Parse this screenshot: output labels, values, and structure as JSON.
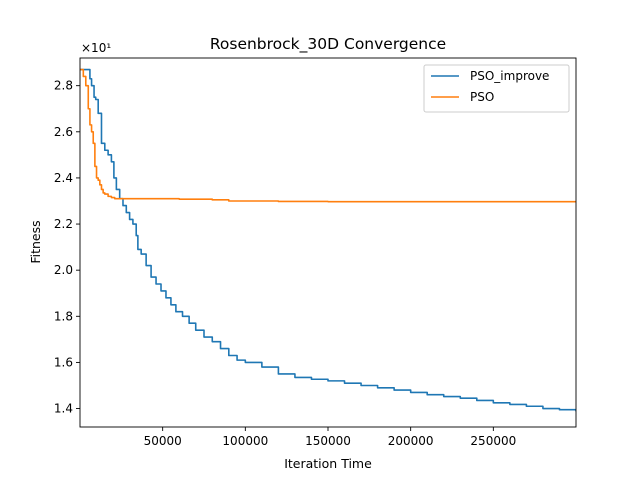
{
  "chart_data": {
    "type": "line",
    "title": "Rosenbrock_30D Convergence",
    "xlabel": "Iteration Time",
    "ylabel": "Fitness",
    "y_offset_text": "×10¹",
    "xlim": [
      1,
      300000
    ],
    "ylim": [
      1.32,
      2.92
    ],
    "xticks": [
      50000,
      100000,
      150000,
      200000,
      250000
    ],
    "xtick_labels": [
      "50000",
      "100000",
      "150000",
      "200000",
      "250000"
    ],
    "yticks": [
      1.4,
      1.6,
      1.8,
      2.0,
      2.2,
      2.4,
      2.6,
      2.8
    ],
    "ytick_labels": [
      "1.4",
      "1.6",
      "1.8",
      "2.0",
      "2.2",
      "2.4",
      "2.6",
      "2.8"
    ],
    "grid": false,
    "legend_position": "top-right",
    "series": [
      {
        "name": "PSO_improve",
        "color": "#1f77b4",
        "x": [
          1,
          4000,
          6000,
          7000,
          8500,
          9500,
          11000,
          13000,
          15000,
          17000,
          19000,
          20500,
          22000,
          24000,
          26000,
          28000,
          30000,
          32000,
          34000,
          35000,
          37000,
          40000,
          43000,
          46000,
          49000,
          52000,
          55000,
          58000,
          62000,
          66000,
          70000,
          75000,
          80000,
          85000,
          90000,
          95000,
          100000,
          110000,
          120000,
          130000,
          140000,
          150000,
          160000,
          170000,
          180000,
          190000,
          200000,
          210000,
          220000,
          230000,
          240000,
          250000,
          260000,
          270000,
          280000,
          290000,
          300000
        ],
        "values": [
          2.87,
          2.87,
          2.83,
          2.8,
          2.75,
          2.74,
          2.68,
          2.55,
          2.52,
          2.5,
          2.47,
          2.4,
          2.35,
          2.31,
          2.28,
          2.25,
          2.22,
          2.2,
          2.15,
          2.09,
          2.07,
          2.02,
          1.97,
          1.94,
          1.91,
          1.88,
          1.85,
          1.82,
          1.8,
          1.77,
          1.74,
          1.71,
          1.69,
          1.66,
          1.63,
          1.61,
          1.6,
          1.58,
          1.55,
          1.535,
          1.527,
          1.52,
          1.51,
          1.5,
          1.49,
          1.48,
          1.47,
          1.46,
          1.452,
          1.445,
          1.435,
          1.425,
          1.418,
          1.41,
          1.4,
          1.395,
          1.388
        ]
      },
      {
        "name": "PSO",
        "color": "#ff7f0e",
        "x": [
          1,
          2000,
          3500,
          5000,
          6000,
          7000,
          8000,
          9000,
          10000,
          11000,
          12000,
          13000,
          14000,
          15000,
          17000,
          19000,
          21000,
          25000,
          30000,
          40000,
          50000,
          60000,
          80000,
          90000,
          100000,
          120000,
          150000,
          200000,
          250000,
          300000
        ],
        "values": [
          2.87,
          2.84,
          2.8,
          2.7,
          2.63,
          2.6,
          2.55,
          2.45,
          2.4,
          2.39,
          2.37,
          2.35,
          2.335,
          2.33,
          2.32,
          2.315,
          2.31,
          2.31,
          2.31,
          2.31,
          2.31,
          2.308,
          2.305,
          2.3,
          2.3,
          2.298,
          2.297,
          2.297,
          2.297,
          2.297
        ]
      }
    ]
  }
}
